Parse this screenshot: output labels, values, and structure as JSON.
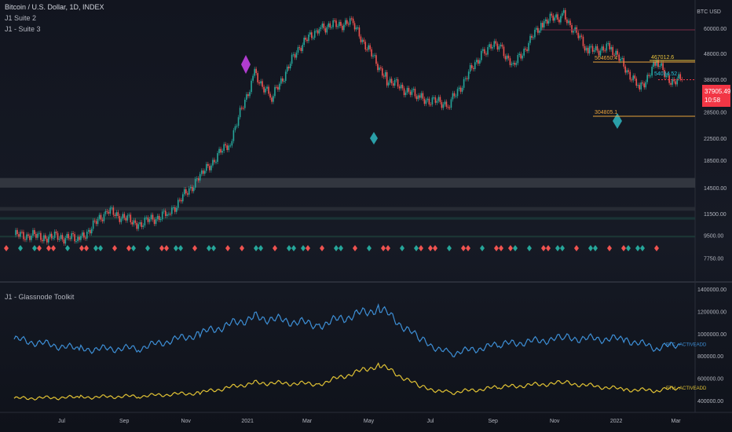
{
  "header": {
    "symbol": "Bitcoin / U.S. Dollar, 1D, INDEX",
    "overlays": [
      "J1 Suite 2",
      "J1 - Suite 3"
    ],
    "currency": "BTC USD"
  },
  "price_tag": {
    "price": "37905.49",
    "countdown": "10:58"
  },
  "lower_pane": {
    "title": "J1 - Glassnode Toolkit",
    "series_labels": [
      "BTC - ACTIVEADD",
      "ETH - ACTIVEADD"
    ]
  },
  "chart_data": [
    {
      "type": "line",
      "title": "Bitcoin / U.S. Dollar, 1D, INDEX",
      "y_axis_ticks": [
        60000,
        48000,
        38000,
        28500,
        22500,
        18500,
        14500,
        11500,
        9500,
        7750
      ],
      "y_axis_labels": [
        "60000.00",
        "48000.00",
        "38000.00",
        "28500.00",
        "22500.00",
        "18500.00",
        "14500.00",
        "11500.00",
        "9500.00",
        "7750.00"
      ],
      "log_scale": true,
      "x_axis_labels": [
        "Jul",
        "Sep",
        "Nov",
        "2021",
        "Mar",
        "May",
        "Jul",
        "Sep",
        "Nov",
        "2022",
        "Mar"
      ],
      "x_axis_dates": [
        "2020-07",
        "2020-09",
        "2020-11",
        "2021-01",
        "2021-03",
        "2021-05",
        "2021-07",
        "2021-09",
        "2021-11",
        "2022-01",
        "2022-03"
      ],
      "series": [
        {
          "name": "",
          "x": [
            "2020-05-15",
            "2020-06-15",
            "2020-07-20",
            "2020-08-15",
            "2020-09-15",
            "2020-10-15",
            "2020-11-15",
            "2020-12-15",
            "2021-01-08",
            "2021-01-25",
            "2021-02-20",
            "2021-03-13",
            "2021-04-14",
            "2021-05-19",
            "2021-06-22",
            "2021-07-20",
            "2021-08-22",
            "2021-09-07",
            "2021-09-21",
            "2021-10-20",
            "2021-11-10",
            "2021-12-04",
            "2021-12-27",
            "2022-01-24",
            "2022-02-10",
            "2022-02-24",
            "2022-03-07"
          ],
          "values": [
            9500,
            9400,
            9200,
            11800,
            10500,
            11500,
            16000,
            22000,
            40000,
            32000,
            50000,
            60500,
            63000,
            38000,
            32000,
            30500,
            49000,
            52000,
            42500,
            63500,
            67500,
            49000,
            50500,
            35000,
            44000,
            37500,
            37900
          ]
        }
      ],
      "annotations": [
        "504650.4",
        "467012.6",
        "54034.52",
        "304805.1"
      ],
      "last_price": 37905.49
    },
    {
      "type": "line",
      "title": "J1 - Glassnode Toolkit",
      "y_axis_ticks": [
        1400000,
        1200000,
        1000000,
        800000,
        600000,
        400000
      ],
      "y_axis_labels": [
        "1400000.00",
        "1200000.00",
        "1000000.00",
        "800000.00",
        "600000.00",
        "400000.00"
      ],
      "x": [
        "2020-05-15",
        "2020-07-20",
        "2020-09-15",
        "2020-11-15",
        "2021-01-08",
        "2021-03-13",
        "2021-05-12",
        "2021-06-22",
        "2021-07-20",
        "2021-09-07",
        "2021-11-10",
        "2022-01-10",
        "2022-02-10",
        "2022-03-07"
      ],
      "series": [
        {
          "name": "BTC - ACTIVEADD",
          "color": "#3d8fd6",
          "values": [
            950000,
            860000,
            870000,
            1000000,
            1150000,
            1080000,
            1230000,
            940000,
            820000,
            900000,
            960000,
            950000,
            870000,
            910000
          ]
        },
        {
          "name": "ETH - ACTIVEADD",
          "color": "#e0c234",
          "values": [
            420000,
            430000,
            440000,
            470000,
            560000,
            550000,
            720000,
            520000,
            470000,
            520000,
            560000,
            500000,
            490000,
            520000
          ]
        }
      ]
    }
  ]
}
